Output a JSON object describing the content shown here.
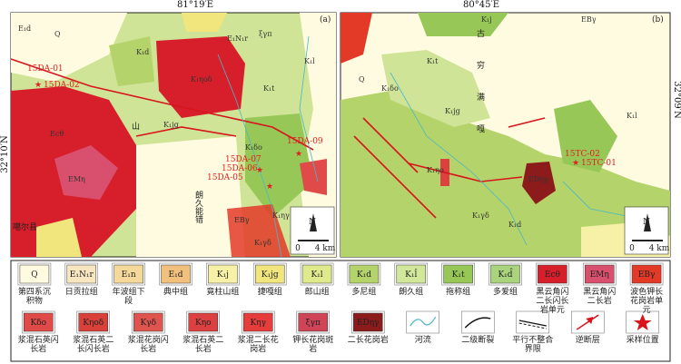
{
  "panels": [
    {
      "tag": "(a)",
      "longitude": "81°19′E",
      "latitude": "32°10′N",
      "samples": [
        "15DA-01",
        "15DA-02",
        "15DA-09",
        "15DA-07",
        "15DA-06",
        "15DA-05"
      ],
      "places": [
        "山",
        "朗久能错",
        "噶尔县"
      ],
      "units": [
        "Q",
        "K₁d",
        "K₁t",
        "Ecθ",
        "EMη",
        "K₁jg",
        "K₁ηοδ",
        "K₁γδ",
        "K₁δο",
        "K₁ηγ",
        "EBγ",
        "E₁N₁r",
        "K₁l",
        "E₁d",
        "ξγπ"
      ],
      "scale": {
        "zero": "0",
        "length": "4 km",
        "north": "N"
      }
    },
    {
      "tag": "(b)",
      "longitude": "80°45′E",
      "latitude": "32°09′N",
      "samples": [
        "15TC-02",
        "15TC-01"
      ],
      "places": [
        "古",
        "穷",
        "满",
        "嘎"
      ],
      "units": [
        "Q",
        "K₁d",
        "K₁t",
        "K₁jg",
        "K₁j",
        "EDηγ",
        "K₁ηο",
        "K₁δο",
        "K₁γδ",
        "EBγ",
        "K₁l"
      ],
      "scale": {
        "zero": "0",
        "length": "4 km",
        "north": "N"
      }
    }
  ],
  "legend": [
    {
      "code": "Q",
      "label": "第四系沉积物",
      "color": "#fffbe0"
    },
    {
      "code": "E₁N₁r",
      "label": "日贡拉组",
      "color": "#f8e6c0"
    },
    {
      "code": "E₁n",
      "label": "年波组下段",
      "color": "#f5d99a"
    },
    {
      "code": "E₁d",
      "label": "典中组",
      "color": "#f1c07c"
    },
    {
      "code": "K₁j",
      "label": "竟柱山组",
      "color": "#f6f1a6"
    },
    {
      "code": "K₁jg",
      "label": "捷嘎组",
      "color": "#f1e67e"
    },
    {
      "code": "K₁l",
      "label": "郎山组",
      "color": "#dfea8c"
    },
    {
      "code": "K₁d",
      "label": "多尼组",
      "color": "#b4d36a"
    },
    {
      "code": "K₁l̂",
      "label": "朗久组",
      "color": "#d2e79a"
    },
    {
      "code": "K₁t",
      "label": "拖称组",
      "color": "#97c857"
    },
    {
      "code": "K₁d̂",
      "label": "多爱组",
      "color": "#a9d37c"
    },
    {
      "code": "Ecθ",
      "label": "黑云角闪二长闪长岩单元",
      "color": "#d71f2b"
    },
    {
      "code": "EMη",
      "label": "黑云角闪二长岩",
      "color": "#d9506e"
    },
    {
      "code": "EBγ",
      "label": "波色钾长花岗岩单元",
      "color": "#e33a28"
    },
    {
      "code": "Kδο",
      "label": "浆混石英闪长岩",
      "color": "#e04a48"
    },
    {
      "code": "Kηοδ",
      "label": "浆混石英二长闪长岩",
      "color": "#d9403a"
    },
    {
      "code": "Kγδ",
      "label": "浆混花岗闪长岩",
      "color": "#e05450"
    },
    {
      "code": "Kηο",
      "label": "浆混石英二长岩",
      "color": "#dc4040"
    },
    {
      "code": "Kηγ",
      "label": "浆混二长花岗岩",
      "color": "#e63c3c"
    },
    {
      "code": "ξγπ",
      "label": "钾长花岗斑岩",
      "color": "#cf4456"
    },
    {
      "code": "EDηγ",
      "label": "二长花岗岩",
      "color": "#8c1c1c"
    },
    {
      "label": "河流"
    },
    {
      "label": "二级断裂"
    },
    {
      "label": "平行不整合界限"
    },
    {
      "label": "逆断层"
    },
    {
      "label": "采样位置"
    }
  ]
}
